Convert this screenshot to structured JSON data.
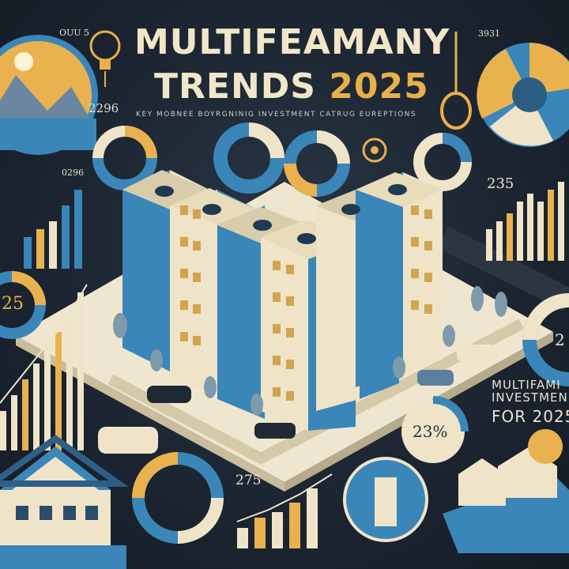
{
  "title": {
    "line1": "MULTIFEAMANY",
    "line2_text": "TRENDS ",
    "line2_year": "2025"
  },
  "subtitle": "KEY MOBNEE BOYRGNINIG INVESTMENT CATRUG EUREPTIONS",
  "side_text": {
    "line1": "MULTIFAMI",
    "line2": "INVESTMEN",
    "line3": "FOR 2025"
  },
  "labels": {
    "top_left_value": "2296",
    "top_left_small": "OUU 5",
    "left_value": "0296",
    "left_donut_value": "25",
    "top_right_value": "3931",
    "top_right_chart_value": "235",
    "right_donut_value": "2",
    "bottom_donut_value": "23%",
    "bottom_chart_value": "275"
  },
  "colors": {
    "background": "#1c2430",
    "accent_blue": "#3a86b8",
    "accent_gold": "#e8b04a",
    "cream": "#efe4c8",
    "dark_navy": "#22303e"
  }
}
